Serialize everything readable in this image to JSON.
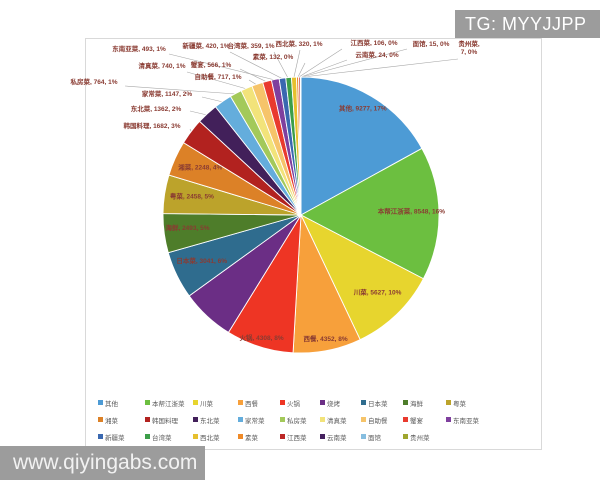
{
  "watermarks": {
    "top_right": "TG: MYYJJPP",
    "bottom_left": "www.qiyingabs.com"
  },
  "styles": {
    "label_color": "#8a3b32",
    "legend_text_color": "#595959",
    "frame_border": "#d9d9d9",
    "leader_line_color": "#a6a6a6",
    "watermark_bg": "#9c9c9c"
  },
  "chart_data": {
    "type": "pie",
    "title": "",
    "legend_position": "bottom",
    "label_format": "name, value, percent",
    "start_angle_deg": 0,
    "direction": "clockwise",
    "slices": [
      {
        "name": "其他",
        "value": 9277,
        "pct": "17%",
        "color": "#4D9BD5",
        "label": "inside"
      },
      {
        "name": "本帮江浙菜",
        "value": 8548,
        "pct": "16%",
        "color": "#6CBF40",
        "label": "inside"
      },
      {
        "name": "川菜",
        "value": 5627,
        "pct": "10%",
        "color": "#E7D52E",
        "label": "inside"
      },
      {
        "name": "西餐",
        "value": 4352,
        "pct": "8%",
        "color": "#F7A03B",
        "label": "inside"
      },
      {
        "name": "火锅",
        "value": 4308,
        "pct": "8%",
        "color": "#EE3524",
        "label": "inside"
      },
      {
        "name": "烧烤",
        "value": 3400,
        "pct": "6%",
        "color": "#6B2E85",
        "label": "none"
      },
      {
        "name": "日本菜",
        "value": 3041,
        "pct": "6%",
        "color": "#2F6C8E",
        "label": "inside"
      },
      {
        "name": "海鲜",
        "value": 2493,
        "pct": "5%",
        "color": "#4E7D2A",
        "label": "inside"
      },
      {
        "name": "粤菜",
        "value": 2458,
        "pct": "5%",
        "color": "#BCA32B",
        "label": "inside"
      },
      {
        "name": "湘菜",
        "value": 2248,
        "pct": "4%",
        "color": "#DC8127",
        "label": "inside"
      },
      {
        "name": "韩国料理",
        "value": 1682,
        "pct": "3%",
        "color": "#B2221F",
        "label": "outside"
      },
      {
        "name": "东北菜",
        "value": 1362,
        "pct": "2%",
        "color": "#42205A",
        "label": "outside"
      },
      {
        "name": "家常菜",
        "value": 1147,
        "pct": "2%",
        "color": "#64ADDC",
        "label": "outside"
      },
      {
        "name": "私房菜",
        "value": 764,
        "pct": "1%",
        "color": "#A3C95A",
        "label": "outside"
      },
      {
        "name": "清真菜",
        "value": 740,
        "pct": "1%",
        "color": "#F2E37A",
        "label": "outside"
      },
      {
        "name": "自助餐",
        "value": 717,
        "pct": "1%",
        "color": "#F6C46A",
        "label": "outside"
      },
      {
        "name": "蟹宴",
        "value": 566,
        "pct": "1%",
        "color": "#E93A2E",
        "label": "outside"
      },
      {
        "name": "东南亚菜",
        "value": 493,
        "pct": "1%",
        "color": "#7F3F9E",
        "label": "outside"
      },
      {
        "name": "新疆菜",
        "value": 420,
        "pct": "1%",
        "color": "#3A68B0",
        "label": "outside"
      },
      {
        "name": "台湾菜",
        "value": 359,
        "pct": "1%",
        "color": "#3C9E49",
        "label": "outside"
      },
      {
        "name": "西北菜",
        "value": 320,
        "pct": "1%",
        "color": "#E6C02E",
        "label": "outside"
      },
      {
        "name": "素菜",
        "value": 132,
        "pct": "0%",
        "color": "#EF8A28",
        "label": "outside"
      },
      {
        "name": "江西菜",
        "value": 106,
        "pct": "0%",
        "color": "#BC2726",
        "label": "outside"
      },
      {
        "name": "云南菜",
        "value": 24,
        "pct": "0%",
        "color": "#45215F",
        "label": "outside"
      },
      {
        "name": "面馆",
        "value": 15,
        "pct": "0%",
        "color": "#86BEE0",
        "label": "outside"
      },
      {
        "name": "贵州菜",
        "value": 7,
        "pct": "0%",
        "color": "#9FA62E",
        "label": "outside"
      }
    ]
  }
}
